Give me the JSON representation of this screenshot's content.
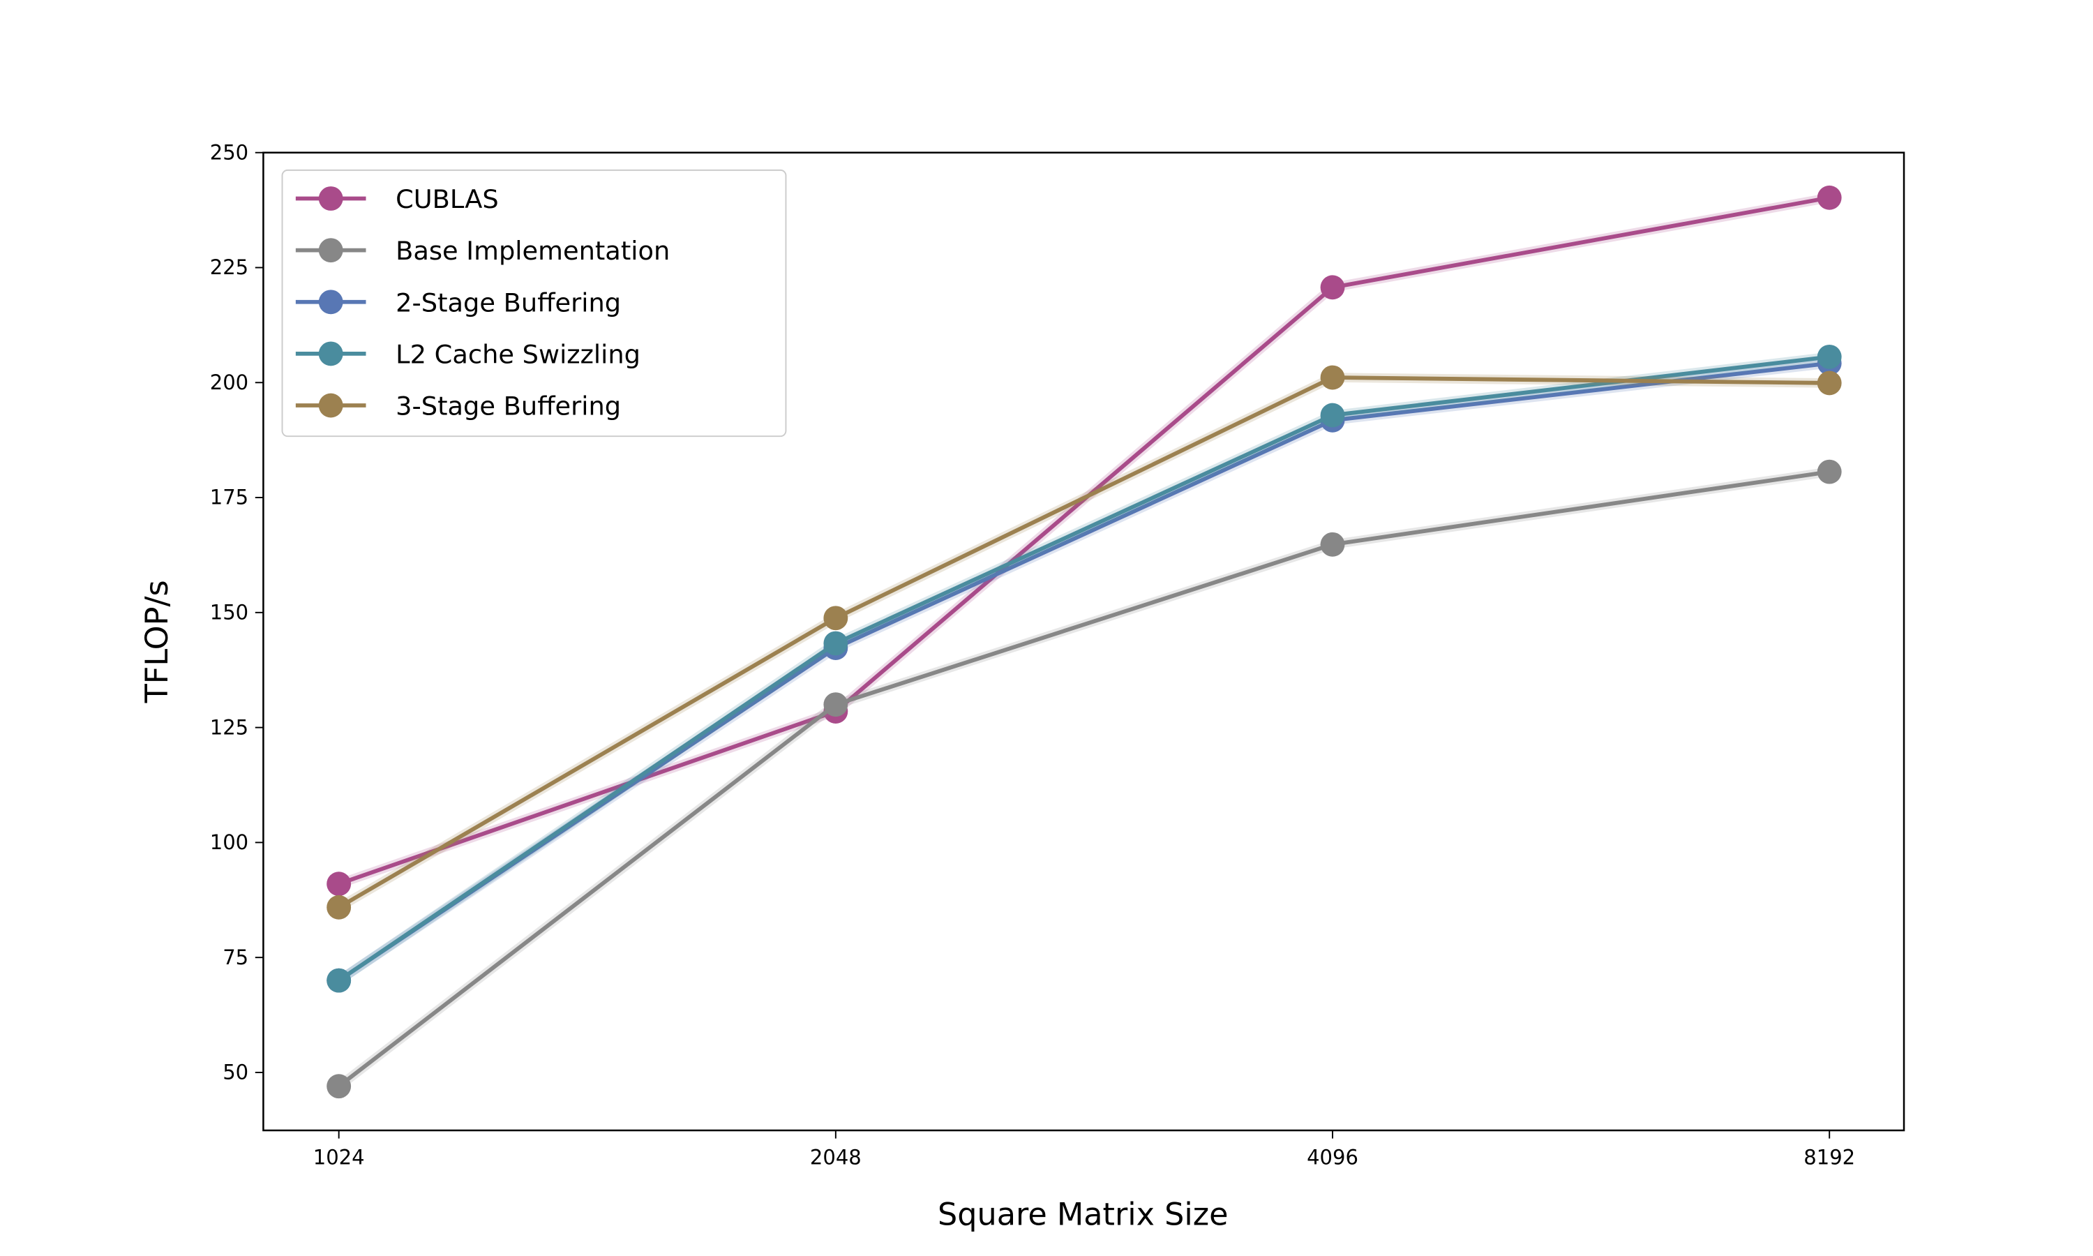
{
  "chart_data": {
    "type": "line",
    "title": "",
    "xlabel": "Square Matrix Size",
    "ylabel": "TFLOP/s",
    "x": [
      1024,
      2048,
      4096,
      8192
    ],
    "x_tick_labels": [
      "1024",
      "2048",
      "4096",
      "8192"
    ],
    "x_scale": "log2",
    "ylim": [
      37.4,
      250
    ],
    "y_ticks": [
      50,
      75,
      100,
      125,
      150,
      175,
      200,
      225,
      250
    ],
    "y_tick_labels": [
      "50",
      "75",
      "100",
      "125",
      "150",
      "175",
      "200",
      "225",
      "250"
    ],
    "grid": false,
    "legend_position": "top-left",
    "series": [
      {
        "name": "CUBLAS",
        "color": "#a94b8a",
        "values": [
          91.0,
          128.5,
          220.7,
          240.2
        ]
      },
      {
        "name": "Base Implementation",
        "color": "#878787",
        "values": [
          47.0,
          130.0,
          164.8,
          180.6
        ]
      },
      {
        "name": "2-Stage Buffering",
        "color": "#5877b4",
        "values": [
          70.0,
          142.3,
          191.8,
          204.2
        ]
      },
      {
        "name": "L2 Cache Swizzling",
        "color": "#4a8c9e",
        "values": [
          70.0,
          143.3,
          192.9,
          205.6
        ]
      },
      {
        "name": "3-Stage Buffering",
        "color": "#9c8150",
        "values": [
          85.9,
          148.8,
          201.1,
          199.9
        ]
      }
    ]
  }
}
